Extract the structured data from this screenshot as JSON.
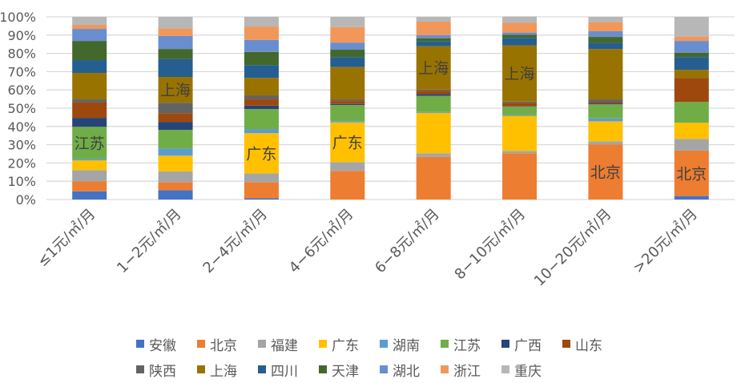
{
  "chart_data": {
    "type": "bar",
    "stacked": "percent",
    "categories": [
      "≤1元/㎡/月",
      "1−2元/㎡/月",
      "2−4元/㎡/月",
      "4−6元/㎡/月",
      "6−8元/㎡/月",
      "8−10元/㎡/月",
      "10−20元/㎡/月",
      ">20元/㎡/月"
    ],
    "ylim": [
      0,
      100
    ],
    "yticks": [
      "0%",
      "10%",
      "20%",
      "30%",
      "40%",
      "50%",
      "60%",
      "70%",
      "80%",
      "90%",
      "100%"
    ],
    "grid": true,
    "legend": "bottom",
    "series": [
      {
        "name": "安徽",
        "color": "#4472C4",
        "values": [
          4.5,
          5.1,
          0.7,
          0,
          0,
          0,
          0,
          1.9
        ]
      },
      {
        "name": "北京",
        "color": "#ED7D31",
        "values": [
          5.4,
          4.4,
          8.8,
          15.7,
          23.3,
          25.3,
          30.2,
          24.9
        ]
      },
      {
        "name": "福建",
        "color": "#A5A5A5",
        "values": [
          6.2,
          5.9,
          4.8,
          4.8,
          2.0,
          1.3,
          1.7,
          6.4
        ]
      },
      {
        "name": "广东",
        "color": "#FFC000",
        "values": [
          5.3,
          8.6,
          22.0,
          21.7,
          22.1,
          19.1,
          10.9,
          8.8
        ]
      },
      {
        "name": "湖南",
        "color": "#5B9BD5",
        "values": [
          0.7,
          3.8,
          2.1,
          0.7,
          0.5,
          0.4,
          1.6,
          0
        ]
      },
      {
        "name": "江苏",
        "color": "#70AD47",
        "values": [
          17.7,
          10.3,
          11.1,
          8.8,
          8.9,
          4.7,
          7.7,
          11.4
        ]
      },
      {
        "name": "广西",
        "color": "#264478",
        "values": [
          4.9,
          4.4,
          1.9,
          0.6,
          0.9,
          0.2,
          0.5,
          0
        ]
      },
      {
        "name": "山东",
        "color": "#9E480E",
        "values": [
          8.4,
          4.8,
          3.4,
          1.6,
          1.9,
          1.8,
          0.7,
          13.2
        ]
      },
      {
        "name": "陕西",
        "color": "#636363",
        "values": [
          1.7,
          5.7,
          2.2,
          0.9,
          0.6,
          0.8,
          1.5,
          0
        ]
      },
      {
        "name": "上海",
        "color": "#997300",
        "values": [
          14.5,
          14.1,
          9.6,
          17.7,
          23.7,
          30.8,
          27.6,
          4.4
        ]
      },
      {
        "name": "四川",
        "color": "#255E91",
        "values": [
          7.0,
          9.8,
          7.0,
          5.5,
          2.6,
          4.1,
          3.3,
          7.0
        ]
      },
      {
        "name": "天津",
        "color": "#43682B",
        "values": [
          10.5,
          5.5,
          7.2,
          4.0,
          1.8,
          1.7,
          3.3,
          2.4
        ]
      },
      {
        "name": "湖北",
        "color": "#698ED0",
        "values": [
          6.6,
          7.1,
          6.6,
          3.9,
          1.7,
          1.2,
          3.1,
          6.4
        ]
      },
      {
        "name": "浙江",
        "color": "#F1975A",
        "values": [
          2.2,
          4.1,
          7.3,
          8.5,
          7.4,
          5.3,
          5.0,
          2.4
        ]
      },
      {
        "name": "重庆",
        "color": "#B7B7B7",
        "values": [
          4.4,
          6.4,
          5.3,
          5.6,
          2.6,
          3.5,
          2.9,
          10.8
        ]
      }
    ],
    "annotations": [
      {
        "category": 0,
        "series": "江苏",
        "text": "江苏"
      },
      {
        "category": 1,
        "series": "上海",
        "text": "上海"
      },
      {
        "category": 2,
        "series": "广东",
        "text": "广东"
      },
      {
        "category": 3,
        "series": "广东",
        "text": "广东"
      },
      {
        "category": 4,
        "series": "上海",
        "text": "上海"
      },
      {
        "category": 5,
        "series": "上海",
        "text": "上海"
      },
      {
        "category": 6,
        "series": "北京",
        "text": "北京"
      },
      {
        "category": 7,
        "series": "北京",
        "text": "北京"
      }
    ]
  }
}
